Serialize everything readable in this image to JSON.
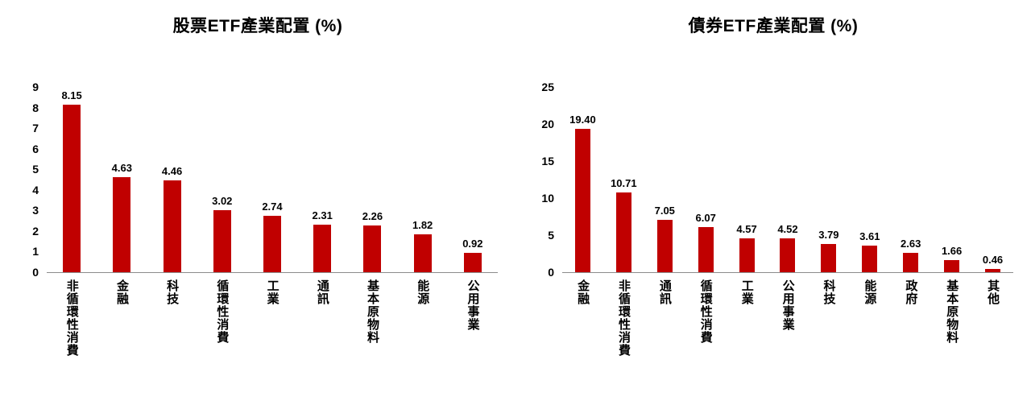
{
  "page": {
    "background": "#ffffff",
    "text_color": "#000000"
  },
  "chart_data": [
    {
      "type": "bar",
      "title": "股票ETF產業配置 (%)",
      "categories": [
        "非循環性消費",
        "金融",
        "科技",
        "循環性消費",
        "工業",
        "通訊",
        "基本原物料",
        "能源",
        "公用事業"
      ],
      "values": [
        8.15,
        4.63,
        4.46,
        3.02,
        2.74,
        2.31,
        2.26,
        1.82,
        0.92
      ],
      "value_labels": [
        "8.15",
        "4.63",
        "4.46",
        "3.02",
        "2.74",
        "2.31",
        "2.26",
        "1.82",
        "0.92"
      ],
      "ylim": [
        0,
        9
      ],
      "yticks": [
        9,
        8,
        7,
        6,
        5,
        4,
        3,
        2,
        1,
        0
      ],
      "bar_color": "#C00000",
      "grid": false,
      "legend": null,
      "xlabel": "",
      "ylabel": ""
    },
    {
      "type": "bar",
      "title": "債券ETF產業配置 (%)",
      "categories": [
        "金融",
        "非循環性消費",
        "通訊",
        "循環性消費",
        "工業",
        "公用事業",
        "科技",
        "能源",
        "政府",
        "基本原物料",
        "其他"
      ],
      "values": [
        19.4,
        10.71,
        7.05,
        6.07,
        4.57,
        4.52,
        3.79,
        3.61,
        2.63,
        1.66,
        0.46
      ],
      "value_labels": [
        "19.40",
        "10.71",
        "7.05",
        "6.07",
        "4.57",
        "4.52",
        "3.79",
        "3.61",
        "2.63",
        "1.66",
        "0.46"
      ],
      "ylim": [
        0,
        25
      ],
      "yticks": [
        25,
        20,
        15,
        10,
        5,
        0
      ],
      "bar_color": "#C00000",
      "grid": false,
      "legend": null,
      "xlabel": "",
      "ylabel": ""
    }
  ]
}
